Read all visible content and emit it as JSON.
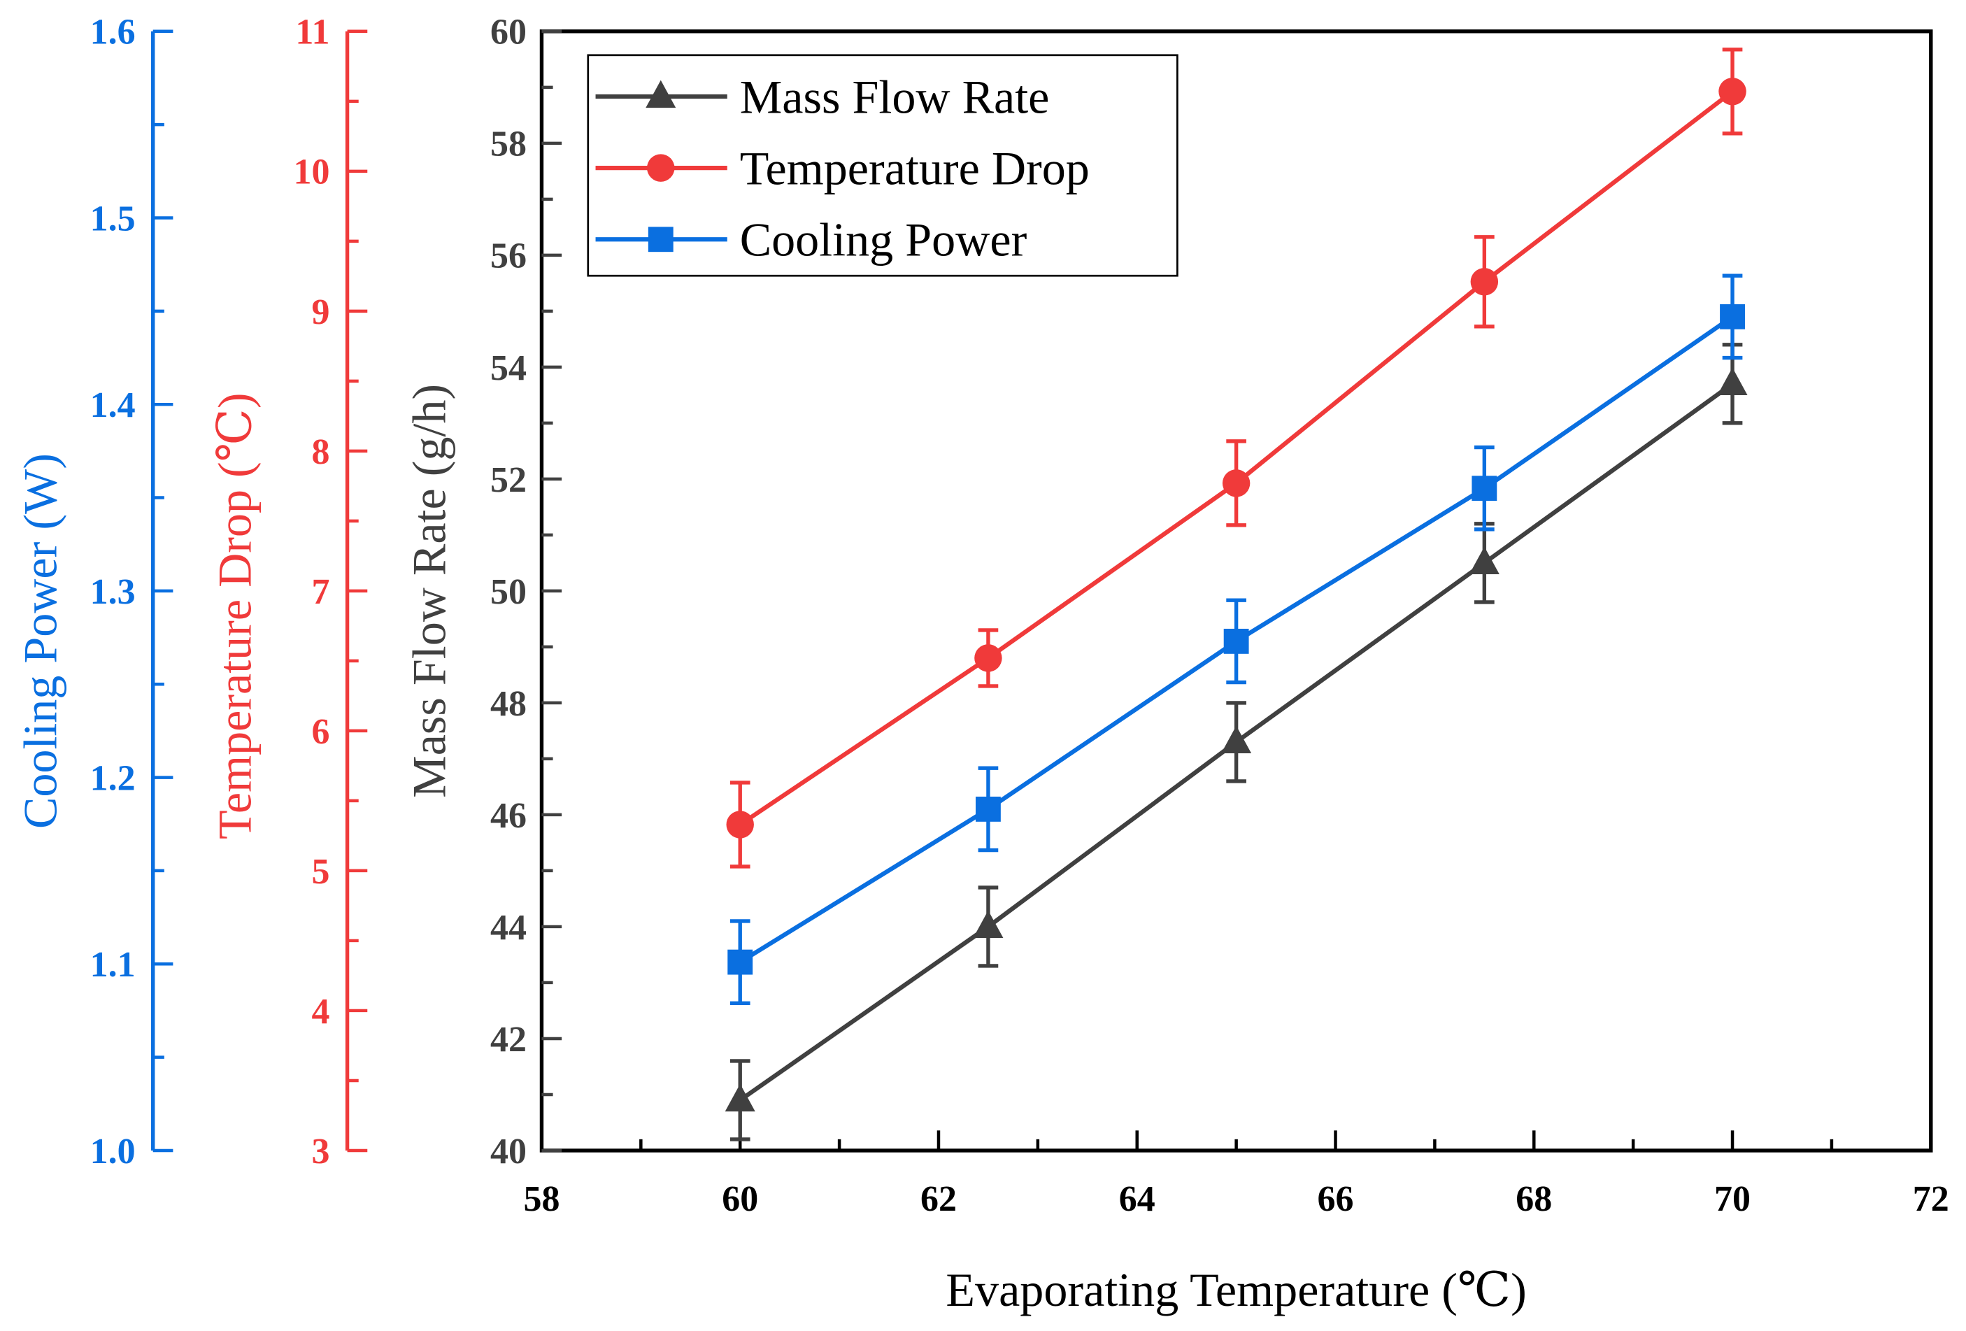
{
  "chart_data": {
    "type": "line",
    "xlabel": "Evaporating Temperature (℃)",
    "xlim": [
      58,
      72
    ],
    "xticks": [
      58,
      60,
      62,
      64,
      66,
      68,
      70,
      72
    ],
    "x": [
      60,
      62.5,
      65,
      67.5,
      70
    ],
    "legend_position": "top-left",
    "grid": false,
    "axes": [
      {
        "id": "mass",
        "label": "Mass Flow Rate (g/h)",
        "ylim": [
          40,
          60
        ],
        "ticks": [
          40,
          42,
          44,
          46,
          48,
          50,
          52,
          54,
          56,
          58,
          60
        ],
        "color": "#404040"
      },
      {
        "id": "temp",
        "label": "Temperature Drop (℃)",
        "ylim": [
          3,
          11
        ],
        "ticks": [
          3,
          4,
          5,
          6,
          7,
          8,
          9,
          10,
          11
        ],
        "color": "#f03a3a"
      },
      {
        "id": "power",
        "label": "Cooling Power (W)",
        "ylim": [
          1.0,
          1.6
        ],
        "ticks": [
          "1.0",
          "1.1",
          "1.2",
          "1.3",
          "1.4",
          "1.5",
          "1.6"
        ],
        "color": "#0a6fe0"
      }
    ],
    "series": [
      {
        "name": "Mass Flow Rate",
        "axis": "mass",
        "marker": "triangle",
        "color": "#404040",
        "values": [
          40.9,
          44.0,
          47.3,
          50.5,
          53.7
        ],
        "error": [
          0.7,
          0.7,
          0.7,
          0.7,
          0.7
        ]
      },
      {
        "name": "Temperature Drop",
        "axis": "temp",
        "marker": "circle",
        "color": "#f03a3a",
        "values": [
          5.33,
          6.52,
          7.77,
          9.21,
          10.57
        ],
        "error": [
          0.3,
          0.2,
          0.3,
          0.32,
          0.3
        ]
      },
      {
        "name": "Cooling Power",
        "axis": "power",
        "marker": "square",
        "color": "#0a6fe0",
        "values": [
          1.101,
          1.183,
          1.273,
          1.355,
          1.447
        ],
        "error": [
          0.022,
          0.022,
          0.022,
          0.022,
          0.022
        ]
      }
    ]
  }
}
